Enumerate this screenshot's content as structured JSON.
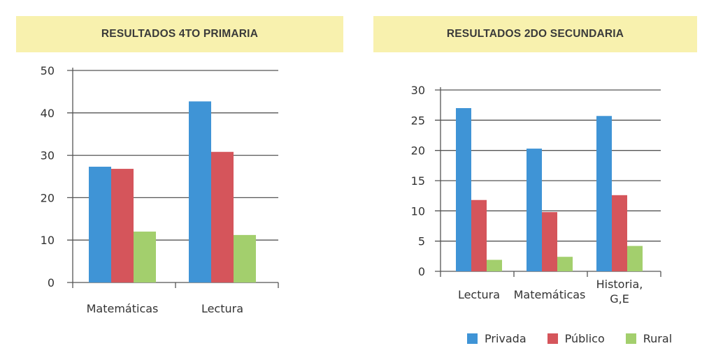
{
  "chart_data": [
    {
      "type": "bar",
      "title": "RESULTADOS 4TO PRIMARIA",
      "categories": [
        "Matemáticas",
        "Lectura"
      ],
      "series": [
        {
          "name": "Privada",
          "values": [
            27.3,
            42.7
          ]
        },
        {
          "name": "Público",
          "values": [
            26.8,
            30.8
          ]
        },
        {
          "name": "Rural",
          "values": [
            12.0,
            11.2
          ]
        }
      ],
      "ylim": [
        0,
        50
      ],
      "yticks": [
        "0",
        "10",
        "20",
        "30",
        "40",
        "50"
      ],
      "grid": true
    },
    {
      "type": "bar",
      "title": "RESULTADOS 2DO SECUNDARIA",
      "categories": [
        "Lectura",
        "Matemáticas",
        "Historia, G,E"
      ],
      "category_lines": [
        [
          "Lectura"
        ],
        [
          "Matemáticas"
        ],
        [
          "Historia,",
          "G,E"
        ]
      ],
      "series": [
        {
          "name": "Privada",
          "values": [
            27.0,
            20.3,
            25.7
          ]
        },
        {
          "name": "Público",
          "values": [
            11.8,
            9.8,
            12.6
          ]
        },
        {
          "name": "Rural",
          "values": [
            1.9,
            2.4,
            4.2
          ]
        }
      ],
      "ylim": [
        0,
        30
      ],
      "yticks": [
        "0",
        "5",
        "10",
        "15",
        "20",
        "25",
        "30"
      ],
      "grid": true,
      "legend": [
        "Privada",
        "Público",
        "Rural"
      ],
      "legend_position": "bottom"
    }
  ],
  "colors": {
    "Privada": "#3f94d6",
    "Público": "#d5555b",
    "Rural": "#a3cf6d",
    "grid": "#555555",
    "banner": "#f8f1ae"
  }
}
